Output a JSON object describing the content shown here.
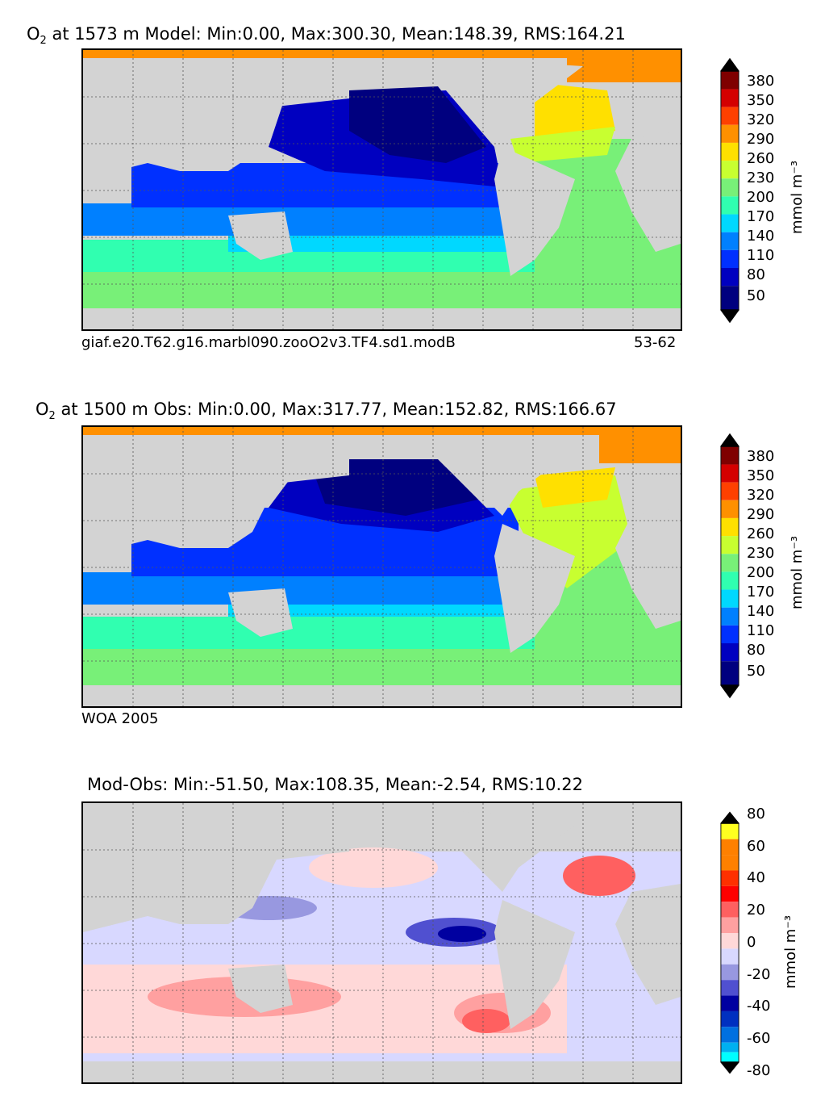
{
  "panels": [
    {
      "title_prefix": "O",
      "title_sub": "2",
      "title_rest": "  at 1573 m Model: Min:0.00, Max:300.30, Mean:148.39, RMS:164.21",
      "caption_left": "giaf.e20.T62.g16.marbl090.zooO2v3.TF4.sd1.modB",
      "caption_right": "53-62",
      "unit": "mmol m⁻³",
      "ticks": [
        "380",
        "350",
        "320",
        "290",
        "260",
        "230",
        "200",
        "170",
        "140",
        "110",
        "80",
        "50"
      ]
    },
    {
      "title_prefix": "O",
      "title_sub": "2",
      "title_rest": "  at 1500 m Obs: Min:0.00, Max:317.77, Mean:152.82, RMS:166.67",
      "caption_left": "WOA 2005",
      "caption_right": "",
      "unit": "mmol m⁻³",
      "ticks": [
        "380",
        "350",
        "320",
        "290",
        "260",
        "230",
        "200",
        "170",
        "140",
        "110",
        "80",
        "50"
      ]
    },
    {
      "title_prefix": "",
      "title_sub": "",
      "title_rest": "Mod-Obs: Min:-51.50, Max:108.35, Mean:-2.54, RMS:10.22",
      "caption_left": "",
      "caption_right": "",
      "unit": "mmol m⁻³",
      "ticks": [
        "80",
        "60",
        "40",
        "20",
        "0",
        "-20",
        "-40",
        "-60",
        "-80"
      ]
    }
  ],
  "colors": {
    "land": "#d3d3d3",
    "o2_scale": [
      "#7f0000",
      "#d40000",
      "#ff4000",
      "#ff9000",
      "#ffe000",
      "#c8ff30",
      "#78f078",
      "#30ffb0",
      "#00d8ff",
      "#0080ff",
      "#0030ff",
      "#0000c0",
      "#00007f"
    ],
    "diff_scale": [
      "#ffff20",
      "#ff8000",
      "#ff3000",
      "#ff0000",
      "#ff6060",
      "#ffa0a0",
      "#ffd8d8",
      "#d8d8ff",
      "#9898e0",
      "#5050d0",
      "#0000a0",
      "#0030c0",
      "#0070e0",
      "#00b0f0",
      "#00ffff"
    ]
  }
}
